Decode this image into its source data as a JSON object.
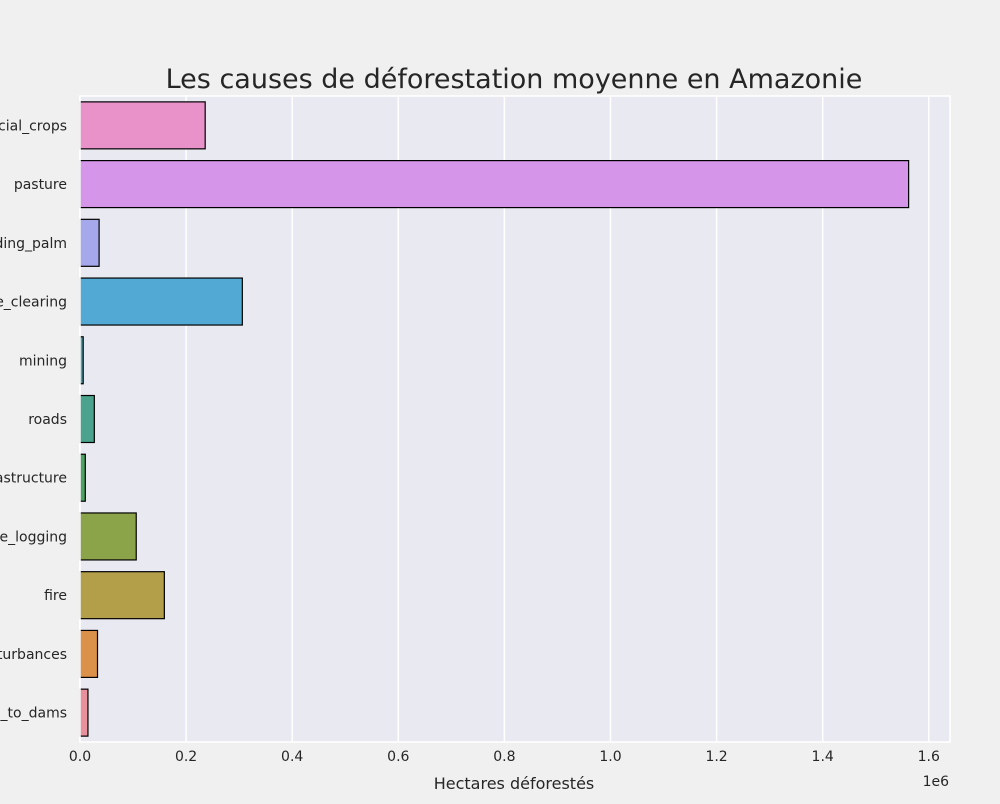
{
  "chart_data": {
    "type": "bar",
    "orientation": "horizontal",
    "title": "Les causes de déforestation moyenne en Amazonie",
    "xlabel": "Hectares déforestés",
    "ylabel": "",
    "x_scale_label": "1e6",
    "xlim": [
      0,
      1640000
    ],
    "x_ticks": [
      0,
      200000,
      400000,
      600000,
      800000,
      1000000,
      1200000,
      1400000,
      1600000
    ],
    "x_tick_labels": [
      "0.0",
      "0.2",
      "0.4",
      "0.6",
      "0.8",
      "1.0",
      "1.2",
      "1.4",
      "1.6"
    ],
    "grid": true,
    "categories": [
      "cial_crops",
      "pasture",
      "ding_palm",
      "e_clearing",
      "mining",
      "roads",
      "astructure",
      "e_logging",
      "fire",
      "turbances",
      "_to_dams"
    ],
    "values": [
      236000,
      1562000,
      36000,
      306000,
      6000,
      27000,
      10000,
      106000,
      159000,
      33000,
      15000
    ],
    "colors": [
      "#e991c9",
      "#d595e9",
      "#a5a8ea",
      "#52a9d4",
      "#4aa1b1",
      "#4ba38e",
      "#4ea164",
      "#8ca449",
      "#b39e4a",
      "#dc914a",
      "#e8909b"
    ]
  }
}
